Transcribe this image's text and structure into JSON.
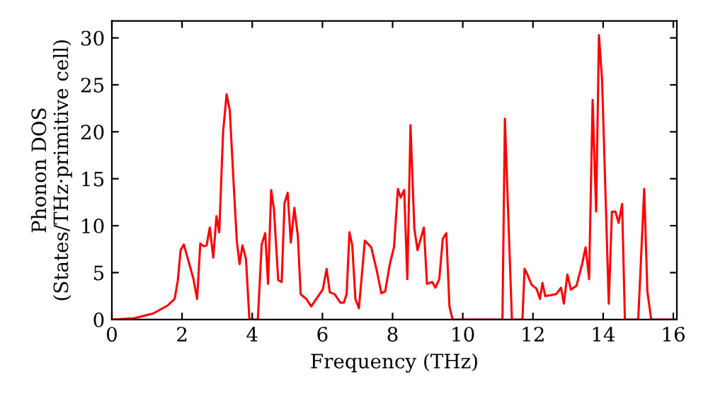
{
  "chart_data": {
    "type": "line",
    "xlabel": "Frequency (THz)",
    "ylabel": "Phonon DOS\n(States/THz·primitive cell)",
    "xlim": [
      0,
      16.1
    ],
    "ylim": [
      0,
      31.8
    ],
    "xticks": [
      0,
      2,
      4,
      6,
      8,
      10,
      12,
      14,
      16
    ],
    "yticks": [
      0,
      5,
      10,
      15,
      20,
      25,
      30
    ],
    "grid": false,
    "legend": false,
    "marker": "none",
    "line_style": "solid",
    "series": [
      {
        "color": "#ff0000",
        "x": [
          0,
          0.64,
          1.18,
          1.59,
          1.79,
          1.88,
          1.96,
          2.05,
          2.32,
          2.43,
          2.52,
          2.62,
          2.7,
          2.79,
          2.89,
          2.98,
          3.06,
          3.17,
          3.27,
          3.36,
          3.47,
          3.56,
          3.64,
          3.72,
          3.82,
          3.92,
          4.16,
          4.27,
          4.37,
          4.45,
          4.54,
          4.62,
          4.74,
          4.84,
          4.92,
          5.01,
          5.1,
          5.2,
          5.3,
          5.38,
          5.54,
          5.68,
          6.01,
          6.12,
          6.21,
          6.35,
          6.51,
          6.61,
          6.69,
          6.77,
          6.85,
          6.94,
          7.04,
          7.21,
          7.39,
          7.55,
          7.68,
          7.79,
          7.92,
          8.04,
          8.15,
          8.23,
          8.33,
          8.42,
          8.51,
          8.62,
          8.71,
          8.89,
          8.98,
          9.13,
          9.22,
          9.33,
          9.43,
          9.53,
          9.62,
          9.71,
          11.13,
          11.2,
          11.4,
          11.7,
          11.76,
          11.84,
          11.96,
          12.1,
          12.2,
          12.27,
          12.35,
          12.66,
          12.8,
          12.88,
          12.98,
          13.08,
          13.24,
          13.4,
          13.5,
          13.6,
          13.7,
          13.8,
          13.88,
          13.97,
          14.16,
          14.25,
          14.35,
          14.44,
          14.54,
          14.62,
          15.0,
          15.17,
          15.26,
          15.37,
          16.1
        ],
        "values": [
          0,
          0.15,
          0.65,
          1.5,
          2.2,
          4.2,
          7.4,
          8.0,
          4.4,
          2.2,
          8.1,
          7.8,
          7.9,
          9.8,
          6.6,
          11.0,
          9.3,
          20.0,
          24.0,
          22.3,
          14.5,
          8.4,
          5.9,
          7.9,
          6.5,
          0,
          0,
          8.0,
          9.2,
          3.8,
          13.8,
          11.7,
          4.2,
          4.0,
          12.4,
          13.5,
          8.2,
          11.9,
          8.9,
          2.7,
          2.2,
          1.4,
          3.2,
          5.4,
          2.9,
          2.7,
          1.8,
          1.8,
          2.7,
          9.3,
          7.9,
          2.2,
          1.2,
          8.4,
          7.7,
          5.2,
          2.8,
          3.0,
          5.9,
          7.7,
          13.9,
          13.0,
          13.8,
          4.3,
          20.7,
          9.7,
          7.4,
          9.8,
          3.8,
          4.0,
          3.4,
          4.3,
          8.6,
          9.2,
          1.4,
          0,
          0,
          21.4,
          0,
          0,
          5.4,
          4.8,
          3.7,
          3.3,
          2.2,
          3.9,
          2.5,
          2.7,
          3.4,
          1.7,
          4.8,
          3.2,
          3.6,
          5.9,
          7.7,
          4.3,
          23.4,
          11.5,
          30.3,
          25.5,
          1.7,
          11.5,
          11.5,
          10.3,
          12.3,
          0,
          0,
          13.9,
          3.0,
          0,
          0
        ]
      }
    ]
  }
}
